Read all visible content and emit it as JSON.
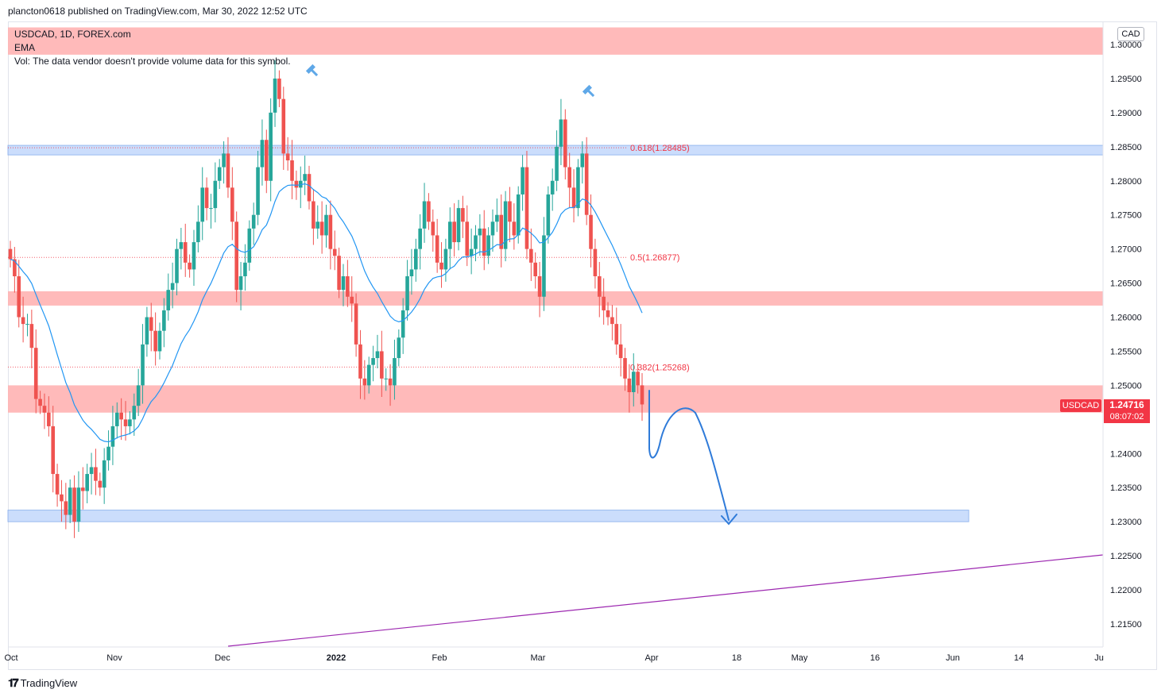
{
  "header": {
    "published": "plancton0618 published on TradingView.com, Mar 30, 2022 12:52 UTC"
  },
  "legend": {
    "symbol": "USDCAD, 1D, FOREX.com",
    "indicator": "EMA",
    "volume_note": "Vol: The data vendor doesn't provide volume data for this symbol."
  },
  "currency": "CAD",
  "price_tag": {
    "symbol": "USDCAD",
    "price": "1.24716",
    "countdown": "08:07:02"
  },
  "footer": {
    "brand": "TradingView"
  },
  "colors": {
    "up": "#26a69a",
    "down": "#ef5350",
    "ema": "#2196f3",
    "trend": "#9c27b0",
    "resistance_zone": "#ffb3b3",
    "support_zone": "#c6dafc",
    "fib": "#f23645"
  },
  "chart_data": {
    "type": "candlestick",
    "symbol": "USDCAD",
    "timeframe": "1D",
    "ylim": [
      1.2115,
      1.3055
    ],
    "y_ticks": [
      "1.30000",
      "1.29500",
      "1.29000",
      "1.28500",
      "1.28000",
      "1.27500",
      "1.27000",
      "1.26500",
      "1.26000",
      "1.25500",
      "1.25000",
      "1.24000",
      "1.23500",
      "1.23000",
      "1.22500",
      "1.22000",
      "1.21500"
    ],
    "x_ticks": [
      "Oct",
      "Nov",
      "Dec",
      "2022",
      "Feb",
      "Mar",
      "Apr",
      "18",
      "May",
      "16",
      "Jun",
      "14",
      "Ju"
    ],
    "fib_levels": [
      {
        "label": "0.618(1.28485)",
        "value": 1.28485
      },
      {
        "label": "0.5(1.26877)",
        "value": 1.26877
      },
      {
        "label": "0.382(1.25268)",
        "value": 1.25268
      }
    ],
    "zones": [
      {
        "type": "resistance",
        "from": 1.2985,
        "to": 1.3025
      },
      {
        "type": "support",
        "from": 1.2838,
        "to": 1.2852
      },
      {
        "type": "resistance",
        "from": 1.2617,
        "to": 1.2638
      },
      {
        "type": "resistance",
        "from": 1.246,
        "to": 1.25
      },
      {
        "type": "support",
        "from": 1.23,
        "to": 1.2317
      }
    ],
    "closes": [
      1.2685,
      1.266,
      1.26,
      1.259,
      1.259,
      1.2555,
      1.248,
      1.247,
      1.246,
      1.244,
      1.237,
      1.234,
      1.233,
      1.231,
      1.235,
      1.23,
      1.235,
      1.2345,
      1.237,
      1.238,
      1.236,
      1.235,
      1.239,
      1.241,
      1.244,
      1.246,
      1.245,
      1.244,
      1.245,
      1.247,
      1.25,
      1.256,
      1.26,
      1.258,
      1.255,
      1.258,
      1.261,
      1.264,
      1.265,
      1.27,
      1.271,
      1.268,
      1.267,
      1.271,
      1.274,
      1.279,
      1.276,
      1.276,
      1.28,
      1.282,
      1.284,
      1.279,
      1.274,
      1.264,
      1.266,
      1.268,
      1.273,
      1.275,
      1.282,
      1.286,
      1.28,
      1.29,
      1.295,
      1.292,
      1.284,
      1.283,
      1.28,
      1.279,
      1.28,
      1.281,
      1.277,
      1.273,
      1.274,
      1.272,
      1.275,
      1.27,
      1.269,
      1.264,
      1.266,
      1.263,
      1.262,
      1.256,
      1.251,
      1.25,
      1.253,
      1.254,
      1.255,
      1.251,
      1.251,
      1.25,
      1.254,
      1.257,
      1.261,
      1.266,
      1.267,
      1.27,
      1.273,
      1.277,
      1.274,
      1.272,
      1.268,
      1.267,
      1.27,
      1.274,
      1.271,
      1.276,
      1.274,
      1.269,
      1.27,
      1.272,
      1.273,
      1.269,
      1.272,
      1.274,
      1.275,
      1.27,
      1.277,
      1.274,
      1.272,
      1.278,
      1.282,
      1.27,
      1.268,
      1.266,
      1.263,
      1.272,
      1.278,
      1.28,
      1.285,
      1.289,
      1.282,
      1.279,
      1.276,
      1.282,
      1.284,
      1.275,
      1.27,
      1.266,
      1.263,
      1.261,
      1.26,
      1.259,
      1.256,
      1.254,
      1.251,
      1.249,
      1.252,
      1.25,
      1.2472
    ]
  }
}
